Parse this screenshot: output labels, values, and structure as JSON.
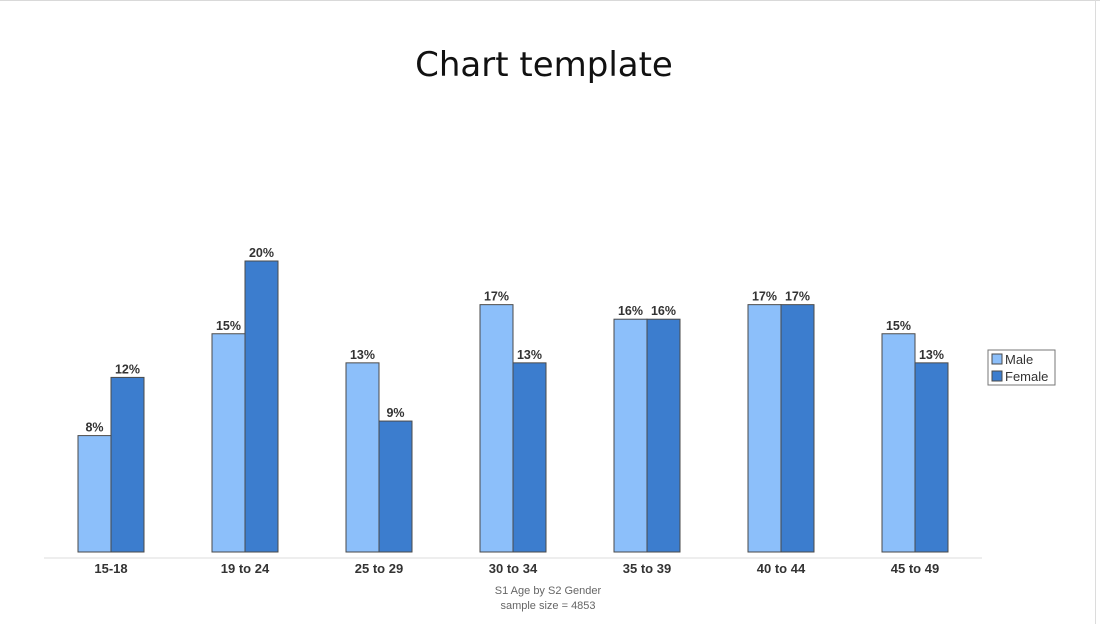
{
  "chart_data": {
    "type": "bar",
    "title": "Chart template",
    "categories": [
      "15-18",
      "19 to 24",
      "25 to 29",
      "30 to 34",
      "35 to 39",
      "40 to 44",
      "45 to 49"
    ],
    "series": [
      {
        "name": "Male",
        "color": "#8cbffa",
        "values": [
          8,
          15,
          13,
          17,
          16,
          17,
          15
        ]
      },
      {
        "name": "Female",
        "color": "#3c7dce",
        "values": [
          12,
          20,
          9,
          13,
          16,
          17,
          13
        ]
      }
    ],
    "value_suffix": "%",
    "ylim": [
      0,
      33
    ],
    "grid": false,
    "legend": "right",
    "caption_lines": [
      "S1 Age by S2 Gender",
      "sample size = 4853"
    ],
    "bar_stroke": "#4a4a4a"
  }
}
